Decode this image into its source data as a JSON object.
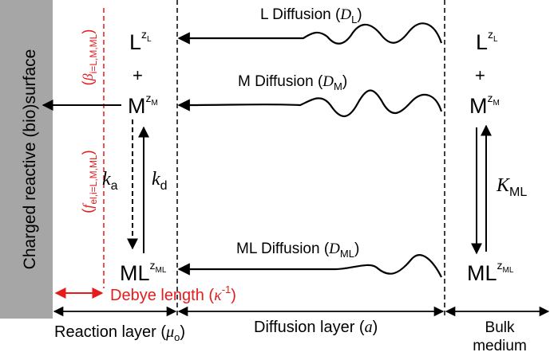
{
  "colors": {
    "surface_fill": "#a6a6a6",
    "ink": "#000000",
    "accent_red": "#e41c1c"
  },
  "surface": {
    "label": "Charged reactive (bio)surface"
  },
  "diffusion": {
    "L": {
      "text": "L Diffusion (",
      "sym": "D",
      "sub": "L",
      "close": ")"
    },
    "M": {
      "text": "M Diffusion (",
      "sym": "D",
      "sub": "M",
      "close": ")"
    },
    "ML": {
      "text": "ML Diffusion (",
      "sym": "D",
      "sub": "ML",
      "close": ")"
    }
  },
  "species": {
    "L": {
      "base": "L",
      "sup": "z",
      "supsub": "L"
    },
    "M": {
      "base": "M",
      "sup": "z",
      "supsub": "M"
    },
    "ML": {
      "base": "ML",
      "sup": "z",
      "supsub": "ML"
    },
    "plus": "+"
  },
  "rates": {
    "ka": {
      "sym": "k",
      "sub": "a"
    },
    "kd": {
      "sym": "k",
      "sub": "d"
    },
    "K": {
      "sym": "K",
      "sub": "ML"
    }
  },
  "red_labels": {
    "beta": {
      "open": "(",
      "sym": "β",
      "sub": "i=L,M,ML",
      "close": ")"
    },
    "f": {
      "open": "(",
      "sym": "f",
      "sub": "el,i=L,M,ML",
      "close": ")"
    },
    "debye": {
      "text": "Debye length (",
      "sym": "κ",
      "sup": "-1",
      "close": ")"
    }
  },
  "layers": {
    "reaction": {
      "text": "Reaction layer (",
      "sym": "μ",
      "sub": "o",
      "close": ")"
    },
    "diffusion": {
      "text": "Diffusion layer (",
      "sym": "a",
      "close": ")"
    },
    "bulk": {
      "line1": "Bulk",
      "line2": "medium"
    }
  }
}
